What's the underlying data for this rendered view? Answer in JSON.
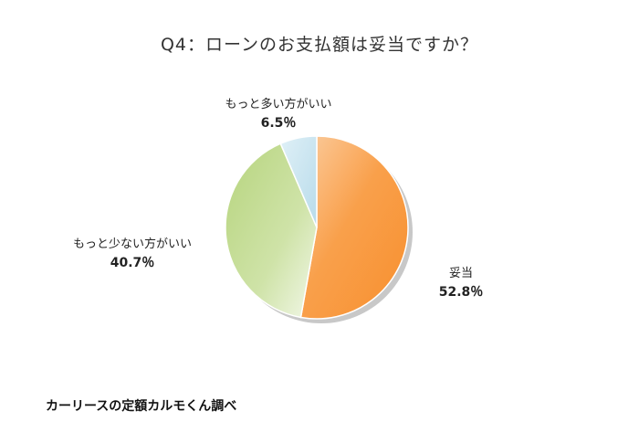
{
  "chart_data": {
    "type": "pie",
    "title": "Q4：ローンのお支払額は妥当ですか？",
    "slices": [
      {
        "label": "妥当",
        "value": 52.8,
        "value_label": "52.8％",
        "color": "#f9a04b"
      },
      {
        "label": "もっと少ない方がいい",
        "value": 40.7,
        "value_label": "40.7％",
        "color": "#c3da93"
      },
      {
        "label": "もっと多い方がいい",
        "value": 6.5,
        "value_label": "6.5％",
        "color": "#c7e3ef"
      }
    ],
    "start_angle": "12 o'clock",
    "direction": "clockwise"
  },
  "source_note": "カーリースの定額カルモくん調べ"
}
